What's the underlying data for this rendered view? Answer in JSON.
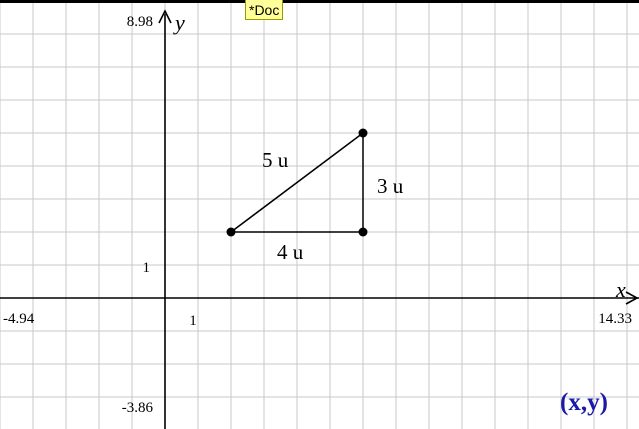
{
  "document": {
    "badge": "*Doc"
  },
  "axes": {
    "x_name": "x",
    "y_name": "y",
    "x_min_label": "-4.94",
    "x_max_label": "14.33",
    "y_max_label": "8.98",
    "y_min_label": "-3.86",
    "x_unit_label": "1",
    "y_unit_label": "1",
    "xlim": [
      -4.94,
      14.33
    ],
    "ylim": [
      -3.86,
      8.98
    ],
    "grid": true
  },
  "triangle": {
    "vertices": [
      {
        "x": 2,
        "y": 2
      },
      {
        "x": 6,
        "y": 2
      },
      {
        "x": 6,
        "y": 5
      }
    ],
    "measurements": [
      {
        "name": "hypotenuse-length",
        "text": "5 u"
      },
      {
        "name": "vertical-leg-length",
        "text": "3 u"
      },
      {
        "name": "horizontal-leg-length",
        "text": "4 u"
      }
    ]
  },
  "tools": {
    "coordinates_button": "(x,y)"
  },
  "colors": {
    "grid": "#c8c8c8",
    "axis": "#000000",
    "tool": "#1a1aa6",
    "badge": "#ffff99"
  }
}
